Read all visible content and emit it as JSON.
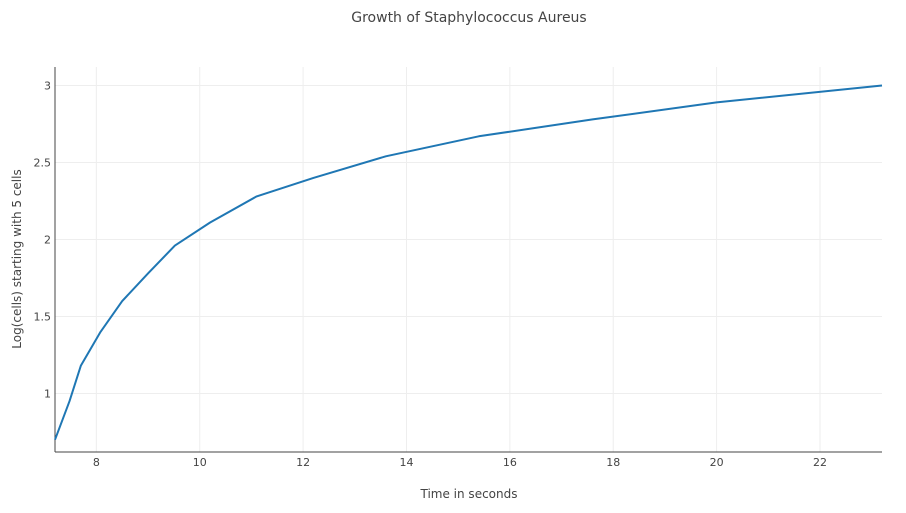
{
  "chart_data": {
    "type": "line",
    "title": "Growth of Staphylococcus Aureus",
    "xlabel": "Time in seconds",
    "ylabel": "Log(cells) starting with 5 cells",
    "xlim": [
      7.2,
      23.2
    ],
    "ylim": [
      0.62,
      3.12
    ],
    "x_ticks": [
      8,
      10,
      12,
      14,
      16,
      18,
      20,
      22
    ],
    "y_ticks": [
      1,
      1.5,
      2,
      2.5,
      3
    ],
    "y_tick_labels": [
      "1",
      "1.5",
      "2",
      "2.5",
      "3"
    ],
    "grid": true,
    "series": [
      {
        "color": "#1f77b4",
        "x": [
          7.2,
          7.48,
          7.7,
          8.08,
          8.5,
          9.0,
          9.52,
          10.2,
          11.1,
          12.2,
          13.6,
          15.4,
          17.6,
          20.0,
          23.2
        ],
        "y": [
          0.7,
          0.95,
          1.18,
          1.4,
          1.6,
          1.78,
          1.96,
          2.11,
          2.28,
          2.4,
          2.54,
          2.67,
          2.78,
          2.89,
          3.0
        ]
      }
    ]
  }
}
